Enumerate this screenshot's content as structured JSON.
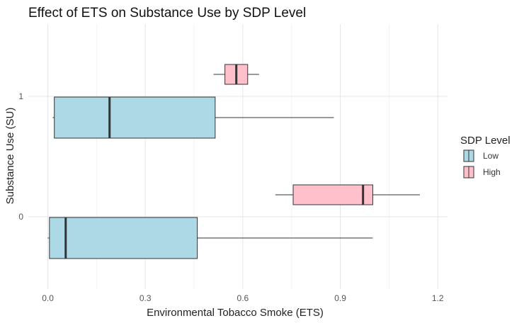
{
  "chart_data": {
    "type": "boxplot",
    "orientation": "horizontal",
    "title": "Effect of ETS on Substance Use by SDP Level",
    "xlabel": "Environmental Tobacco Smoke (ETS)",
    "ylabel": "Substance Use (SU)",
    "xlim": [
      -0.06,
      1.23
    ],
    "x_ticks": [
      "0.0",
      "0.3",
      "0.6",
      "0.9",
      "1.2"
    ],
    "x_tick_values": [
      0.0,
      0.3,
      0.6,
      0.9,
      1.2
    ],
    "y_categories": [
      "0",
      "1"
    ],
    "grid": true,
    "legend": {
      "title": "SDP Level",
      "position": "right",
      "entries": [
        {
          "label": "Low",
          "color": "#add8e6"
        },
        {
          "label": "High",
          "color": "#ffc0cb"
        }
      ]
    },
    "series": [
      {
        "legend_label": "Low",
        "color": "#add8e6",
        "boxes": [
          {
            "category": "0",
            "whisker_low": 0.0,
            "q1": 0.005,
            "median": 0.055,
            "q3": 0.46,
            "whisker_high": 1.0
          },
          {
            "category": "1",
            "whisker_low": 0.015,
            "q1": 0.02,
            "median": 0.19,
            "q3": 0.515,
            "whisker_high": 0.88
          }
        ]
      },
      {
        "legend_label": "High",
        "color": "#ffc0cb",
        "boxes": [
          {
            "category": "0",
            "whisker_low": 0.7,
            "q1": 0.755,
            "median": 0.97,
            "q3": 1.0,
            "whisker_high": 1.145
          },
          {
            "category": "1",
            "whisker_low": 0.51,
            "q1": 0.545,
            "median": 0.58,
            "q3": 0.615,
            "whisker_high": 0.65
          }
        ]
      }
    ]
  }
}
